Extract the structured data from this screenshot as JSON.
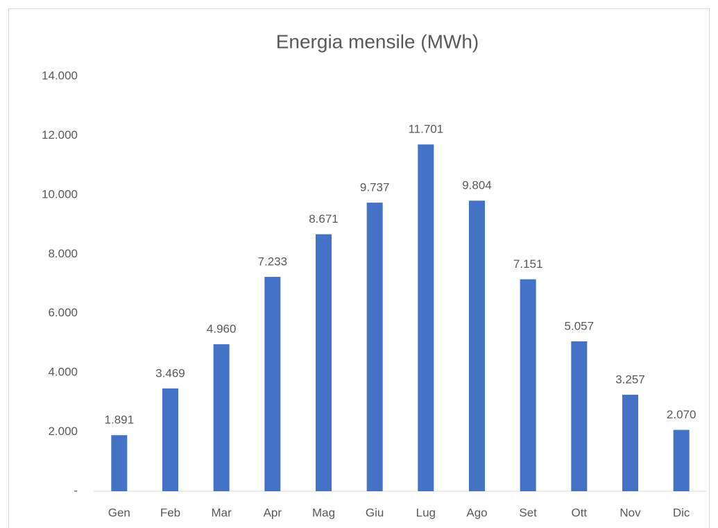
{
  "chart_data": {
    "type": "bar",
    "title": "Energia mensile (MWh)",
    "categories": [
      "Gen",
      "Feb",
      "Mar",
      "Apr",
      "Mag",
      "Giu",
      "Lug",
      "Ago",
      "Set",
      "Ott",
      "Nov",
      "Dic"
    ],
    "values": [
      1891,
      3469,
      4960,
      7233,
      8671,
      9737,
      11701,
      9804,
      7151,
      5057,
      3257,
      2070
    ],
    "value_labels": [
      "1.891",
      "3.469",
      "4.960",
      "7.233",
      "8.671",
      "9.737",
      "11.701",
      "9.804",
      "7.151",
      "5.057",
      "3.257",
      "2.070"
    ],
    "color": "#4472c4",
    "ylim": [
      0,
      14000
    ],
    "yticks": [
      {
        "value": 0,
        "label": "-"
      },
      {
        "value": 2000,
        "label": "2.000"
      },
      {
        "value": 4000,
        "label": "4.000"
      },
      {
        "value": 6000,
        "label": "6.000"
      },
      {
        "value": 8000,
        "label": "8.000"
      },
      {
        "value": 10000,
        "label": "10.000"
      },
      {
        "value": 12000,
        "label": "12.000"
      },
      {
        "value": 14000,
        "label": "14.000"
      }
    ],
    "grid": false
  }
}
